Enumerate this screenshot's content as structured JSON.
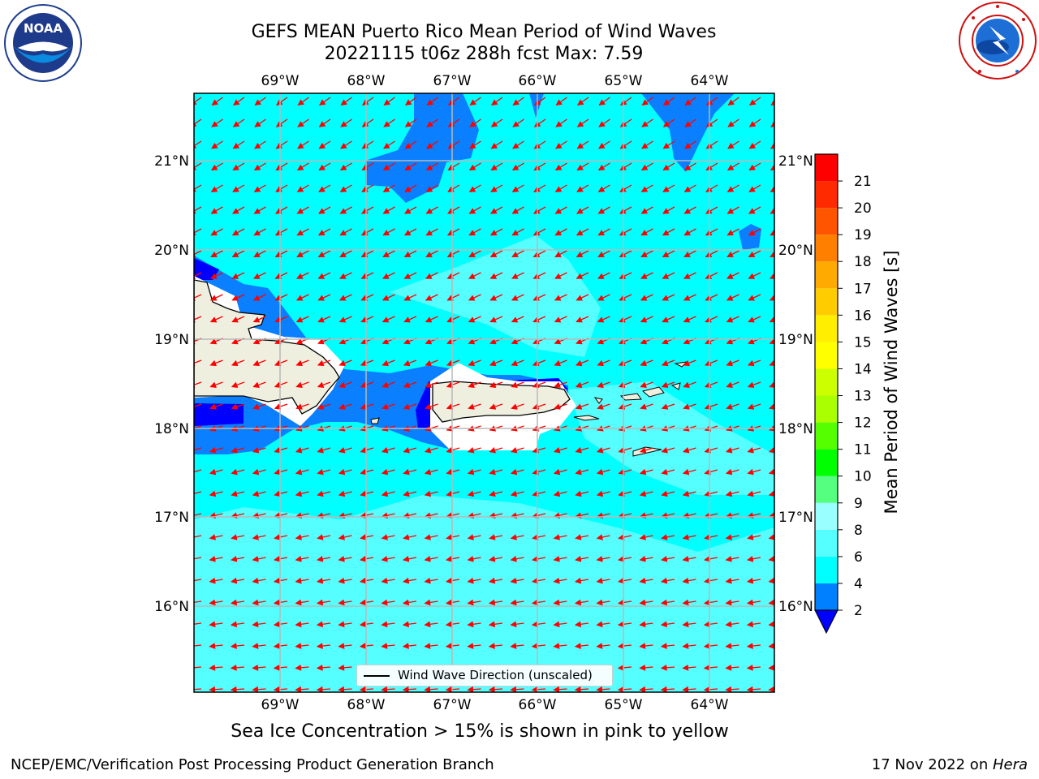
{
  "header": {
    "title_line1": "GEFS MEAN Puerto Rico Mean Period of Wind Waves",
    "title_line2": "20221115 t06z 288h fcst   Max: 7.59"
  },
  "logos": {
    "left": {
      "name": "NOAA",
      "text": "NOAA"
    },
    "right": {
      "name": "National Weather Service"
    }
  },
  "map": {
    "lon_labels": [
      "69°W",
      "68°W",
      "67°W",
      "66°W",
      "65°W",
      "64°W"
    ],
    "lat_labels": [
      "21°N",
      "20°N",
      "19°N",
      "18°N",
      "17°N",
      "16°N"
    ],
    "legend_label": "Wind Wave Direction (unscaled)",
    "arrow_color": "#ff0000",
    "land_color": "#efefe0",
    "ocean_main_color": "#00ffff",
    "ocean_light_color": "#55ffff",
    "ocean_dark_color": "#0a7fff"
  },
  "colorbar": {
    "label": "Mean Period of Wind Waves [s]",
    "ticks": [
      "2",
      "4",
      "6",
      "8",
      "9",
      "10",
      "11",
      "12",
      "13",
      "14",
      "15",
      "16",
      "17",
      "18",
      "19",
      "20",
      "21"
    ],
    "colors": [
      "#0000ff",
      "#0080ff",
      "#00ffff",
      "#55ffff",
      "#99ffff",
      "#55ff80",
      "#00ff00",
      "#55ff00",
      "#aaff00",
      "#ccff00",
      "#ffff00",
      "#ffee00",
      "#ffcc00",
      "#ffaa00",
      "#ff8000",
      "#ff5500",
      "#ff2a00",
      "#ff0000"
    ]
  },
  "footer": {
    "note": "Sea Ice Concentration > 15% is shown in pink to yellow",
    "left": "NCEP/EMC/Verification Post Processing Product Generation Branch",
    "right_prefix": "17 Nov 2022 on ",
    "right_machine": "Hera"
  }
}
